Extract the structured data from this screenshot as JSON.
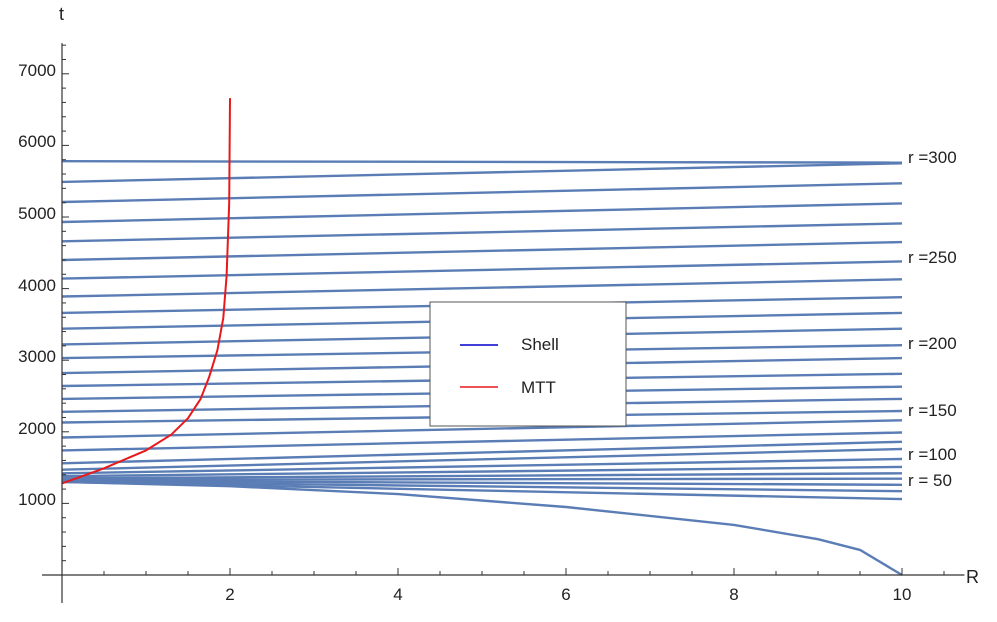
{
  "chart_data": {
    "type": "line",
    "xlabel": "R",
    "ylabel": "t",
    "xlim": [
      0,
      10.6
    ],
    "ylim": [
      0,
      7400
    ],
    "x_ticks": [
      "2",
      "4",
      "6",
      "8",
      "10"
    ],
    "y_ticks": [
      "1000",
      "2000",
      "3000",
      "4000",
      "5000",
      "6000",
      "7000"
    ],
    "grid": false,
    "legend": {
      "placement": "center",
      "entries": [
        {
          "name": "Shell",
          "color": "#0000cc"
        },
        {
          "name": "MTT",
          "color": "#e8191c"
        }
      ]
    },
    "shell_color": "#5b7db5",
    "mtt_color": "#e8191c",
    "curve_labels": [
      {
        "text": "r =300",
        "r": 300
      },
      {
        "text": "r =250",
        "r": 250
      },
      {
        "text": "r =200",
        "r": 200
      },
      {
        "text": "r =150",
        "r": 150
      },
      {
        "text": "r =100",
        "r": 100
      },
      {
        "text": "r = 50",
        "r": 50
      }
    ],
    "series": [
      {
        "r": 0,
        "x": [
          0,
          2,
          4,
          6,
          8,
          9,
          9.5,
          10
        ],
        "y": [
          1300,
          1240,
          1130,
          950,
          700,
          500,
          350,
          0
        ]
      },
      {
        "r": 50,
        "x": [
          0,
          10
        ],
        "y": [
          1300,
          1060
        ]
      },
      {
        "r": 60,
        "x": [
          0,
          10
        ],
        "y": [
          1305,
          1170
        ]
      },
      {
        "r": 70,
        "x": [
          0,
          10
        ],
        "y": [
          1315,
          1260
        ]
      },
      {
        "r": 80,
        "x": [
          0,
          10
        ],
        "y": [
          1330,
          1345
        ]
      },
      {
        "r": 90,
        "x": [
          0,
          10
        ],
        "y": [
          1350,
          1420
        ]
      },
      {
        "r": 100,
        "x": [
          0,
          10
        ],
        "y": [
          1380,
          1510
        ]
      },
      {
        "r": 110,
        "x": [
          0,
          10
        ],
        "y": [
          1420,
          1620
        ]
      },
      {
        "r": 120,
        "x": [
          0,
          10
        ],
        "y": [
          1470,
          1760
        ]
      },
      {
        "r": 130,
        "x": [
          0,
          10
        ],
        "y": [
          1560,
          1860
        ]
      },
      {
        "r": 140,
        "x": [
          0,
          10
        ],
        "y": [
          1740,
          1990
        ]
      },
      {
        "r": 150,
        "x": [
          0,
          10
        ],
        "y": [
          1920,
          2160
        ]
      },
      {
        "r": 160,
        "x": [
          0,
          10
        ],
        "y": [
          2130,
          2290
        ]
      },
      {
        "r": 170,
        "x": [
          0,
          10
        ],
        "y": [
          2280,
          2460
        ]
      },
      {
        "r": 180,
        "x": [
          0,
          10
        ],
        "y": [
          2460,
          2630
        ]
      },
      {
        "r": 190,
        "x": [
          0,
          10
        ],
        "y": [
          2640,
          2810
        ]
      },
      {
        "r": 200,
        "x": [
          0,
          10
        ],
        "y": [
          2820,
          3030
        ]
      },
      {
        "r": 210,
        "x": [
          0,
          10
        ],
        "y": [
          3030,
          3210
        ]
      },
      {
        "r": 220,
        "x": [
          0,
          10
        ],
        "y": [
          3220,
          3440
        ]
      },
      {
        "r": 230,
        "x": [
          0,
          10
        ],
        "y": [
          3440,
          3660
        ]
      },
      {
        "r": 240,
        "x": [
          0,
          10
        ],
        "y": [
          3660,
          3880
        ]
      },
      {
        "r": 250,
        "x": [
          0,
          10
        ],
        "y": [
          3890,
          4130
        ]
      },
      {
        "r": 260,
        "x": [
          0,
          10
        ],
        "y": [
          4140,
          4380
        ]
      },
      {
        "r": 270,
        "x": [
          0,
          10
        ],
        "y": [
          4400,
          4650
        ]
      },
      {
        "r": 280,
        "x": [
          0,
          10
        ],
        "y": [
          4660,
          4910
        ]
      },
      {
        "r": 290,
        "x": [
          0,
          10
        ],
        "y": [
          4930,
          5190
        ]
      },
      {
        "r": 300,
        "x": [
          0,
          10
        ],
        "y": [
          5210,
          5470
        ]
      },
      {
        "r": 310,
        "x": [
          0,
          10
        ],
        "y": [
          5490,
          5750
        ]
      },
      {
        "r": 320,
        "x": [
          0,
          10
        ],
        "y": [
          5780,
          5760
        ]
      }
    ],
    "mtt": {
      "x": [
        0,
        0.5,
        1.0,
        1.3,
        1.5,
        1.65,
        1.75,
        1.85,
        1.92,
        1.96,
        1.99,
        2.0
      ],
      "y": [
        1280,
        1490,
        1740,
        1960,
        2190,
        2460,
        2760,
        3140,
        3590,
        4180,
        5200,
        6660
      ]
    }
  }
}
